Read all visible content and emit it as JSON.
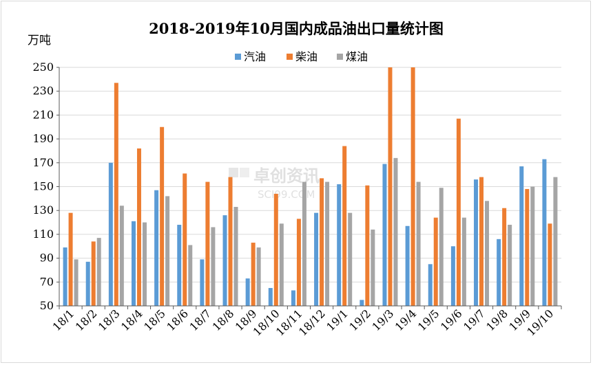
{
  "chart_data": {
    "type": "bar",
    "title": "2018-2019年10月国内成品油出口量统计图",
    "ylabel": "万吨",
    "ylim": [
      50,
      250
    ],
    "yticks": [
      50,
      70,
      90,
      110,
      130,
      150,
      170,
      190,
      210,
      230,
      250
    ],
    "legend_position": "top-center",
    "categories": [
      "18/1",
      "18/2",
      "18/3",
      "18/4",
      "18/5",
      "18/6",
      "18/7",
      "18/8",
      "18/9",
      "18/10",
      "18/11",
      "18/12",
      "19/1",
      "19/2",
      "19/3",
      "19/4",
      "19/5",
      "19/6",
      "19/7",
      "19/8",
      "19/9",
      "19/10"
    ],
    "series": [
      {
        "name": "汽油",
        "color": "#5b9bd5",
        "values": [
          99,
          87,
          170,
          121,
          147,
          118,
          89,
          126,
          73,
          65,
          63,
          128,
          152,
          55,
          169,
          117,
          85,
          100,
          156,
          106,
          167,
          173
        ]
      },
      {
        "name": "柴油",
        "color": "#ed7d31",
        "values": [
          128,
          104,
          237,
          182,
          200,
          161,
          154,
          158,
          103,
          144,
          123,
          157,
          184,
          151,
          250,
          250,
          124,
          207,
          158,
          132,
          148,
          119
        ]
      },
      {
        "name": "煤油",
        "color": "#a5a5a5",
        "values": [
          89,
          107,
          134,
          120,
          142,
          101,
          116,
          133,
          99,
          119,
          154,
          154,
          128,
          114,
          174,
          154,
          149,
          124,
          138,
          118,
          150,
          158
        ]
      }
    ]
  },
  "watermark": {
    "brand": "卓创资讯",
    "url": "SCI99.COM"
  }
}
